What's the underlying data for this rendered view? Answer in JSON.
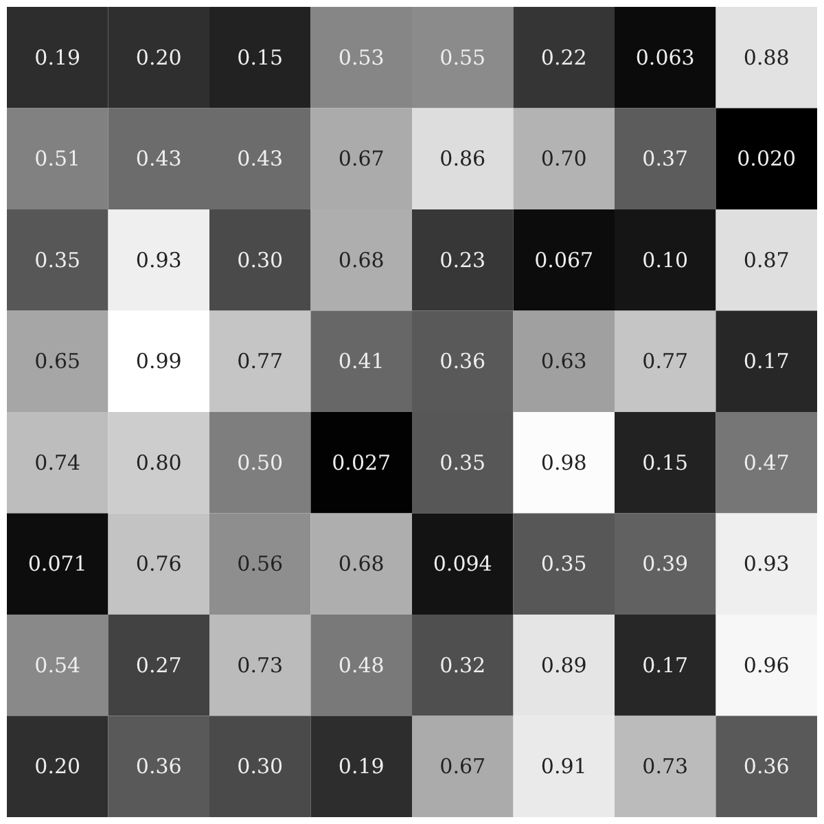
{
  "chart_data": {
    "type": "heatmap",
    "categories": [
      null,
      null,
      null,
      null,
      null,
      null,
      null,
      null
    ],
    "y_categories": [
      null,
      null,
      null,
      null,
      null,
      null,
      null,
      null
    ],
    "cells": [
      [
        0.19,
        0.2,
        0.15,
        0.53,
        0.55,
        0.22,
        0.063,
        0.88
      ],
      [
        0.51,
        0.43,
        0.43,
        0.67,
        0.86,
        0.7,
        0.37,
        0.02
      ],
      [
        0.35,
        0.93,
        0.3,
        0.68,
        0.23,
        0.067,
        0.1,
        0.87
      ],
      [
        0.65,
        0.99,
        0.77,
        0.41,
        0.36,
        0.63,
        0.77,
        0.17
      ],
      [
        0.74,
        0.8,
        0.5,
        0.027,
        0.35,
        0.98,
        0.15,
        0.47
      ],
      [
        0.071,
        0.76,
        0.56,
        0.68,
        0.094,
        0.35,
        0.39,
        0.93
      ],
      [
        0.54,
        0.27,
        0.73,
        0.48,
        0.32,
        0.89,
        0.17,
        0.96
      ],
      [
        0.2,
        0.36,
        0.3,
        0.19,
        0.67,
        0.91,
        0.73,
        0.36
      ]
    ],
    "cell_labels": [
      [
        "0.19",
        "0.20",
        "0.15",
        "0.53",
        "0.55",
        "0.22",
        "0.063",
        "0.88"
      ],
      [
        "0.51",
        "0.43",
        "0.43",
        "0.67",
        "0.86",
        "0.70",
        "0.37",
        "0.020"
      ],
      [
        "0.35",
        "0.93",
        "0.30",
        "0.68",
        "0.23",
        "0.067",
        "0.10",
        "0.87"
      ],
      [
        "0.65",
        "0.99",
        "0.77",
        "0.41",
        "0.36",
        "0.63",
        "0.77",
        "0.17"
      ],
      [
        "0.74",
        "0.80",
        "0.50",
        "0.027",
        "0.35",
        "0.98",
        "0.15",
        "0.47"
      ],
      [
        "0.071",
        "0.76",
        "0.56",
        "0.68",
        "0.094",
        "0.35",
        "0.39",
        "0.93"
      ],
      [
        "0.54",
        "0.27",
        "0.73",
        "0.48",
        "0.32",
        "0.89",
        "0.17",
        "0.96"
      ],
      [
        "0.20",
        "0.36",
        "0.30",
        "0.19",
        "0.67",
        "0.91",
        "0.73",
        "0.36"
      ]
    ]
  }
}
